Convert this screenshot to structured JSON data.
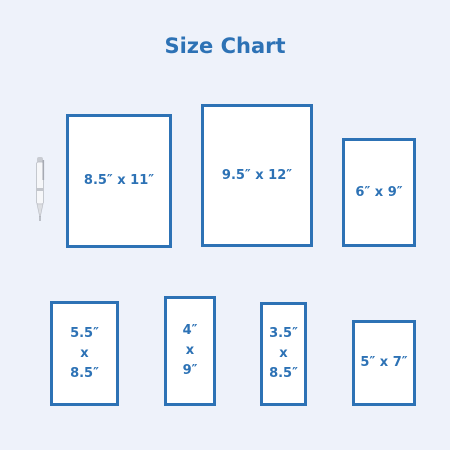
{
  "title": "Size Chart",
  "colors": {
    "accent": "#2d72b5",
    "background": "#eef2fa",
    "card": "#ffffff"
  },
  "sizes": [
    {
      "label": "8.5″ x 11″"
    },
    {
      "label": "9.5″ x 12″"
    },
    {
      "label": "6″  x  9″"
    },
    {
      "label": "5.5″\nx\n8.5″"
    },
    {
      "label": "4″\nx\n9″"
    },
    {
      "label": "3.5″\nx\n8.5″"
    },
    {
      "label": "5″ x 7″"
    }
  ],
  "scale_reference_icon": "pen-icon"
}
